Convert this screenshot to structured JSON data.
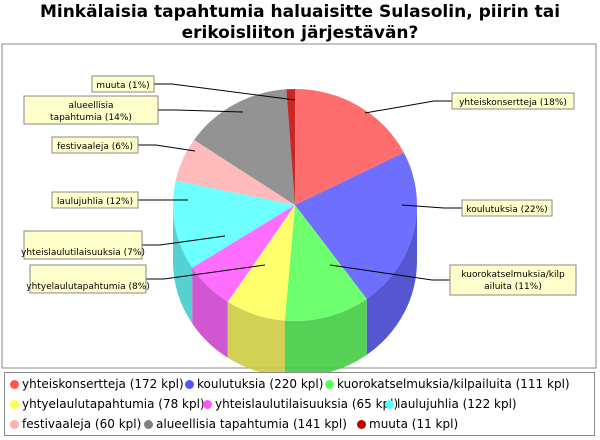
{
  "chart_data": {
    "type": "pie",
    "title": "Minkälaisia tapahtumia haluaisitte Sulasolin, piirin tai erikoisliiton järjestävän?",
    "slices": [
      {
        "legend": "yhteiskonsertteja (172 kpl)",
        "label": "yhteiskonsertteja (18%)",
        "value": 172,
        "percent": 18,
        "color": "#ff5555"
      },
      {
        "legend": "koulutuksia (220 kpl)",
        "label": "koulutuksia (22%)",
        "value": 220,
        "percent": 22,
        "color": "#5555ff"
      },
      {
        "legend": "kuorokatselmuksia/kilpailuita (111 kpl)",
        "label": "kuorokatselmuksia/kilpailuita (11%)",
        "value": 111,
        "percent": 11,
        "color": "#55ff55"
      },
      {
        "legend": "yhtyelaulutapahtumia (78 kpl)",
        "label": "yhtyelaulutapahtumia (8%)",
        "value": 78,
        "percent": 8,
        "color": "#ffff55"
      },
      {
        "legend": "yhteislaulutilaisuuksia (65 kpl)",
        "label": "yhteislaulutilaisuuksia (7%)",
        "value": 65,
        "percent": 7,
        "color": "#ff55ff"
      },
      {
        "legend": "laulujuhlia (122 kpl)",
        "label": "laulujuhlia (12%)",
        "value": 122,
        "percent": 12,
        "color": "#55ffff"
      },
      {
        "legend": "festivaaleja (60 kpl)",
        "label": "festivaaleja (6%)",
        "value": 60,
        "percent": 6,
        "color": "#ffafaf"
      },
      {
        "legend": "alueellisia tapahtumia (141 kpl)",
        "label": "alueellisia tapahtumia (14%)",
        "value": 141,
        "percent": 14,
        "color": "#808080"
      },
      {
        "legend": "muuta (11 kpl)",
        "label": "muuta (1%)",
        "value": 11,
        "percent": 1,
        "color": "#c00000"
      }
    ]
  }
}
